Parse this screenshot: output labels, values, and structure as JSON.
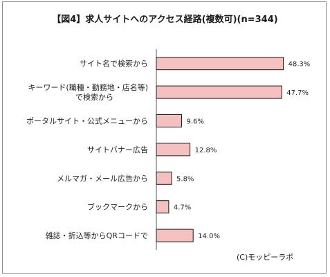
{
  "chart_data": {
    "type": "bar",
    "orientation": "horizontal",
    "title": "【図4】求人サイトへのアクセス経路(複数可)(n=344)",
    "categories": [
      [
        "サイト名で検索から"
      ],
      [
        "キーワード(職種・勤務地・店名等)",
        "で検索から"
      ],
      [
        "ポータルサイト・公式メニューから"
      ],
      [
        "サイトバナー広告"
      ],
      [
        "メルマガ・メール広告から"
      ],
      [
        "ブックマークから"
      ],
      [
        "雑誌・折込等からQRコードで"
      ]
    ],
    "values": [
      48.3,
      47.7,
      9.6,
      12.8,
      5.8,
      4.7,
      14.0
    ],
    "value_labels": [
      "48.3%",
      "47.7%",
      "9.6%",
      "12.8%",
      "5.8%",
      "4.7%",
      "14.0%"
    ],
    "unit": "%",
    "xlim": [
      0,
      50
    ],
    "grid": false,
    "bar_fill": "#f4c0c0",
    "bar_stroke": "#1a1a1a",
    "credit": "(C)モッピーラボ"
  }
}
